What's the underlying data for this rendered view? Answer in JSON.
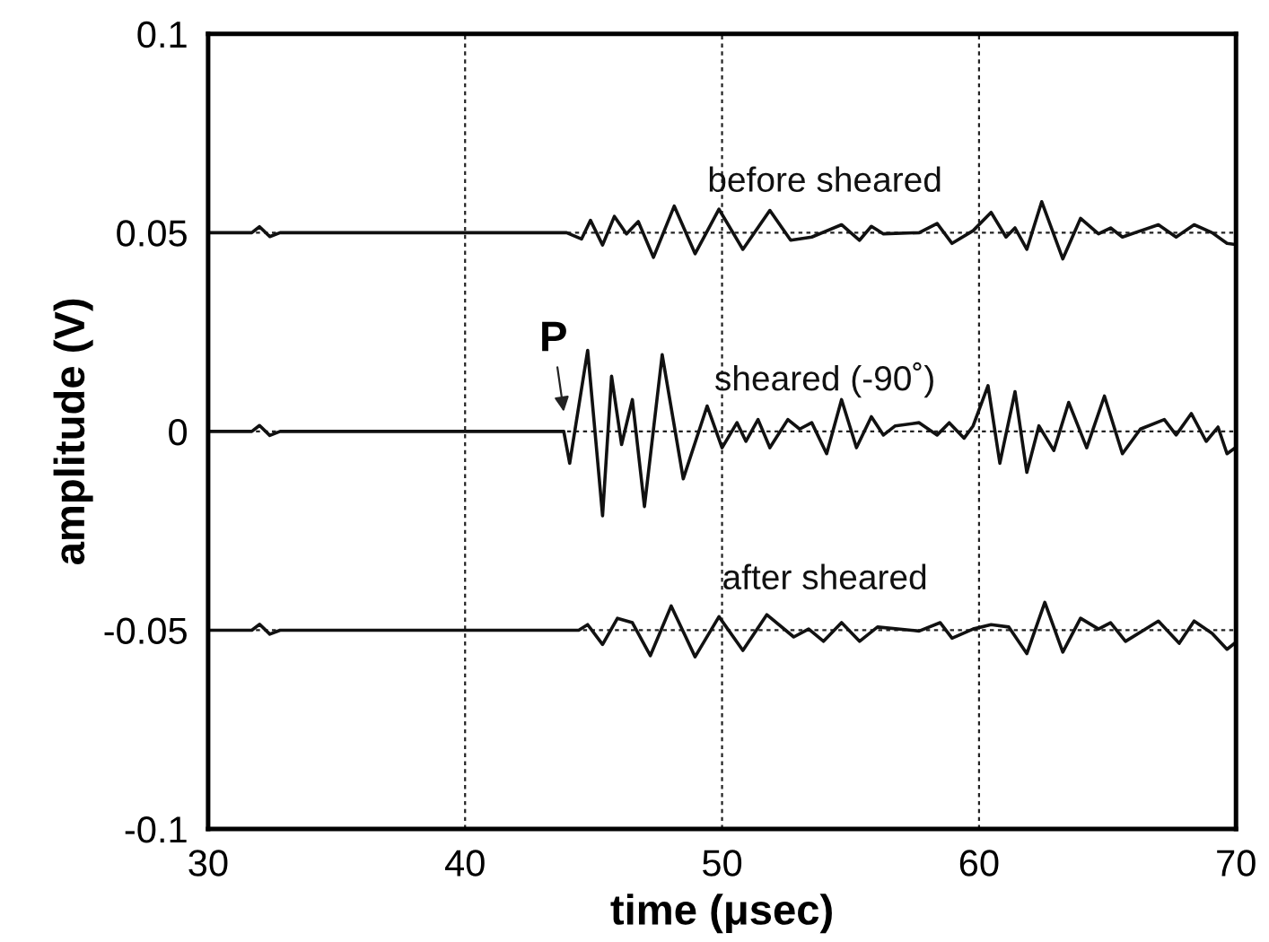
{
  "chart_data": {
    "type": "line",
    "xlabel": "time (μsec)",
    "ylabel": "amplitude (V)",
    "xlim": [
      30,
      70
    ],
    "xticks": [
      30,
      40,
      50,
      60,
      70
    ],
    "ylim": [
      -0.1,
      0.1
    ],
    "yticks": [
      0.1,
      0.05,
      0,
      -0.05,
      -0.1
    ],
    "grid": true,
    "line_style": "solid",
    "marker": "none",
    "annotations": [
      "P"
    ],
    "series": [
      {
        "name": "before sheared",
        "color": "#111111",
        "x": [
          30,
          31.7,
          32.0,
          32.4,
          32.8,
          40,
          43.95,
          44.53,
          44.88,
          45.35,
          45.81,
          46.28,
          46.74,
          47.33,
          48.14,
          48.95,
          49.88,
          50.81,
          51.86,
          52.67,
          53.49,
          54.65,
          55.35,
          55.81,
          56.28,
          57.67,
          58.37,
          58.95,
          59.77,
          60.47,
          61.05,
          61.4,
          61.86,
          62.44,
          63.26,
          63.95,
          64.65,
          65.12,
          65.58,
          66.98,
          67.67,
          68.37,
          69.07,
          69.65,
          70
        ],
        "values": [
          0.05,
          0.05,
          0.0515,
          0.049,
          0.05,
          0.05,
          0.05,
          0.0484,
          0.0531,
          0.0469,
          0.0541,
          0.0497,
          0.0528,
          0.0438,
          0.0567,
          0.0447,
          0.0559,
          0.0458,
          0.0556,
          0.0481,
          0.0489,
          0.052,
          0.0481,
          0.0516,
          0.0497,
          0.05,
          0.0523,
          0.0473,
          0.0505,
          0.0551,
          0.0489,
          0.0512,
          0.0458,
          0.0578,
          0.0434,
          0.0536,
          0.0497,
          0.0512,
          0.0489,
          0.052,
          0.0489,
          0.052,
          0.05,
          0.0473,
          0.047
        ]
      },
      {
        "name": "sheared (-90˚)",
        "color": "#111111",
        "x": [
          30,
          31.7,
          32.0,
          32.4,
          32.8,
          40,
          43.84,
          44.07,
          44.77,
          45.35,
          45.7,
          46.09,
          46.51,
          46.98,
          47.67,
          48.49,
          49.42,
          50.0,
          50.58,
          50.93,
          51.4,
          51.86,
          52.56,
          53.02,
          53.49,
          54.07,
          54.65,
          55.23,
          55.81,
          56.28,
          56.74,
          57.67,
          58.37,
          58.84,
          59.42,
          59.77,
          60.35,
          60.81,
          61.4,
          61.86,
          62.33,
          62.91,
          63.49,
          64.19,
          64.88,
          65.58,
          66.28,
          67.21,
          67.67,
          68.26,
          68.84,
          69.3,
          69.65,
          70
        ],
        "values": [
          0,
          0,
          0.0015,
          -0.001,
          0,
          0,
          0,
          -0.008,
          0.0204,
          -0.0212,
          0.0139,
          -0.0033,
          0.008,
          -0.0189,
          0.0193,
          -0.0119,
          0.0064,
          -0.0041,
          0.0022,
          -0.0025,
          0.003,
          -0.0041,
          0.003,
          0.0006,
          0.0022,
          -0.0056,
          0.008,
          -0.0041,
          0.0037,
          -0.0009,
          0.0014,
          0.0022,
          -0.0009,
          0.0022,
          -0.0017,
          0.0014,
          0.0115,
          -0.008,
          0.01,
          -0.0103,
          0.0014,
          -0.0048,
          0.0073,
          -0.0041,
          0.0089,
          -0.0056,
          0.0006,
          0.003,
          -0.0009,
          0.0045,
          -0.0025,
          0.0011,
          -0.0056,
          -0.004
        ]
      },
      {
        "name": "after sheared",
        "color": "#111111",
        "x": [
          30,
          31.7,
          32.0,
          32.4,
          32.8,
          40,
          44.42,
          44.77,
          45.35,
          45.93,
          46.51,
          47.21,
          48.02,
          48.95,
          49.88,
          50.81,
          51.74,
          52.79,
          53.37,
          53.95,
          54.65,
          55.35,
          56.05,
          57.67,
          58.49,
          58.95,
          59.77,
          60.47,
          61.16,
          61.86,
          62.56,
          63.26,
          63.95,
          64.65,
          65.12,
          65.7,
          66.98,
          67.79,
          68.37,
          69.07,
          69.65,
          70
        ],
        "values": [
          -0.05,
          -0.05,
          -0.0485,
          -0.051,
          -0.05,
          -0.05,
          -0.05,
          -0.0486,
          -0.0536,
          -0.047,
          -0.0481,
          -0.0564,
          -0.0439,
          -0.0567,
          -0.0466,
          -0.0551,
          -0.0461,
          -0.0517,
          -0.0497,
          -0.0528,
          -0.0481,
          -0.0528,
          -0.0492,
          -0.0502,
          -0.0481,
          -0.052,
          -0.0497,
          -0.0486,
          -0.0492,
          -0.0559,
          -0.043,
          -0.0555,
          -0.047,
          -0.0497,
          -0.0481,
          -0.0528,
          -0.0477,
          -0.0533,
          -0.0477,
          -0.0508,
          -0.0548,
          -0.053
        ]
      }
    ]
  }
}
